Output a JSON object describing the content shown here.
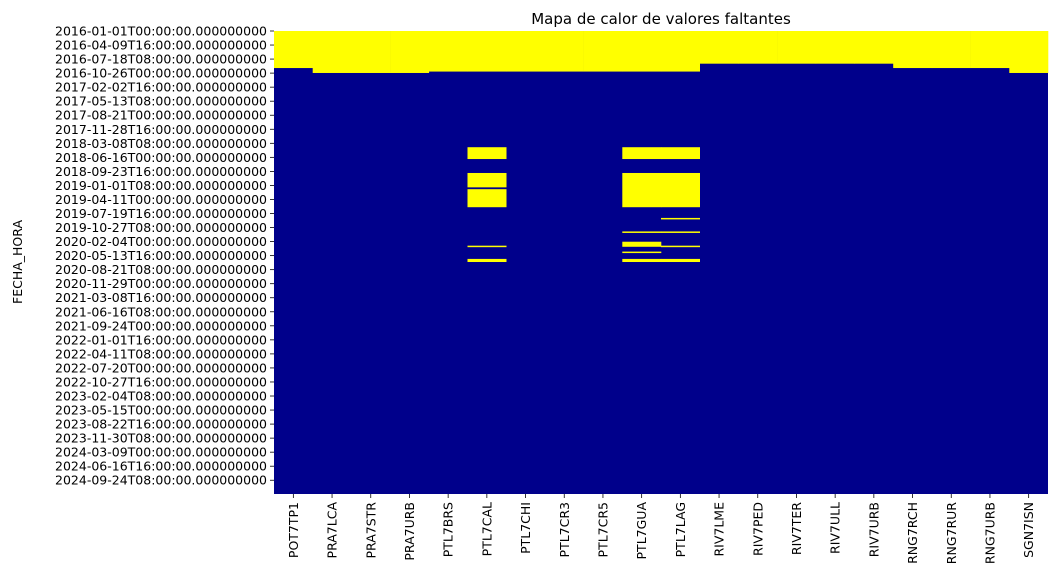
{
  "chart_data": {
    "type": "heatmap",
    "title": "Mapa de calor de valores faltantes",
    "xlabel": "",
    "ylabel": "FECHA_HORA",
    "legend": "none",
    "grid": false,
    "colors": {
      "missing": "#ffff00",
      "present": "#00008b"
    },
    "x_categories": [
      "POT7TP1",
      "PRA7LCA",
      "PRA7STR",
      "PRA7URB",
      "PTL7BRS",
      "PTL7CAL",
      "PTL7CHI",
      "PTL7CR3",
      "PTL7CR5",
      "PTL7GUA",
      "PTL7LAG",
      "RIV7LME",
      "RIV7PED",
      "RIV7TER",
      "RIV7ULL",
      "RIV7URB",
      "RNG7RCH",
      "RNG7RUR",
      "RNG7URB",
      "SGN7ISN"
    ],
    "y_tick_labels": [
      "2016-01-01T00:00:00.000000000",
      "2016-04-09T16:00:00.000000000",
      "2016-07-18T08:00:00.000000000",
      "2016-10-26T00:00:00.000000000",
      "2017-02-02T16:00:00.000000000",
      "2017-05-13T08:00:00.000000000",
      "2017-08-21T00:00:00.000000000",
      "2017-11-28T16:00:00.000000000",
      "2018-03-08T08:00:00.000000000",
      "2018-06-16T00:00:00.000000000",
      "2018-09-23T16:00:00.000000000",
      "2019-01-01T08:00:00.000000000",
      "2019-04-11T00:00:00.000000000",
      "2019-07-19T16:00:00.000000000",
      "2019-10-27T08:00:00.000000000",
      "2020-02-04T00:00:00.000000000",
      "2020-05-13T16:00:00.000000000",
      "2020-08-21T08:00:00.000000000",
      "2020-11-29T00:00:00.000000000",
      "2021-03-08T16:00:00.000000000",
      "2021-06-16T08:00:00.000000000",
      "2021-09-24T00:00:00.000000000",
      "2022-01-01T16:00:00.000000000",
      "2022-04-11T08:00:00.000000000",
      "2022-07-20T00:00:00.000000000",
      "2022-10-27T16:00:00.000000000",
      "2023-02-04T08:00:00.000000000",
      "2023-05-15T00:00:00.000000000",
      "2023-08-22T16:00:00.000000000",
      "2023-11-30T08:00:00.000000000",
      "2024-03-09T00:00:00.000000000",
      "2024-06-16T16:00:00.000000000",
      "2024-09-24T08:00:00.000000000"
    ],
    "y_range": [
      "2016-01-01",
      "2024-12-31"
    ],
    "missing_ranges": [
      {
        "column": "POT7TP1",
        "from": "2016-01-01",
        "to": "2016-09-20"
      },
      {
        "column": "PRA7LCA",
        "from": "2016-01-01",
        "to": "2016-10-25"
      },
      {
        "column": "PRA7STR",
        "from": "2016-01-01",
        "to": "2016-10-25"
      },
      {
        "column": "PRA7URB",
        "from": "2016-01-01",
        "to": "2016-10-25"
      },
      {
        "column": "PTL7BRS",
        "from": "2016-01-01",
        "to": "2016-10-15"
      },
      {
        "column": "PTL7CAL",
        "from": "2016-01-01",
        "to": "2016-10-15"
      },
      {
        "column": "PTL7CAL",
        "from": "2018-04-05",
        "to": "2018-06-28"
      },
      {
        "column": "PTL7CAL",
        "from": "2018-10-05",
        "to": "2019-01-15"
      },
      {
        "column": "PTL7CAL",
        "from": "2019-01-28",
        "to": "2019-06-05"
      },
      {
        "column": "PTL7CAL",
        "from": "2020-03-04",
        "to": "2020-03-14"
      },
      {
        "column": "PTL7CAL",
        "from": "2020-06-06",
        "to": "2020-06-28"
      },
      {
        "column": "PTL7CHI",
        "from": "2016-01-01",
        "to": "2016-10-15"
      },
      {
        "column": "PTL7CR3",
        "from": "2016-01-01",
        "to": "2016-10-15"
      },
      {
        "column": "PTL7CR5",
        "from": "2016-01-01",
        "to": "2016-10-15"
      },
      {
        "column": "PTL7GUA",
        "from": "2016-01-01",
        "to": "2016-10-15"
      },
      {
        "column": "PTL7GUA",
        "from": "2018-04-05",
        "to": "2018-06-28"
      },
      {
        "column": "PTL7GUA",
        "from": "2018-10-05",
        "to": "2019-06-05"
      },
      {
        "column": "PTL7GUA",
        "from": "2019-11-24",
        "to": "2019-12-02"
      },
      {
        "column": "PTL7GUA",
        "from": "2020-02-05",
        "to": "2020-03-12"
      },
      {
        "column": "PTL7GUA",
        "from": "2020-04-15",
        "to": "2020-04-25"
      },
      {
        "column": "PTL7GUA",
        "from": "2020-06-06",
        "to": "2020-06-28"
      },
      {
        "column": "PTL7LAG",
        "from": "2016-01-01",
        "to": "2016-10-15"
      },
      {
        "column": "PTL7LAG",
        "from": "2018-04-05",
        "to": "2018-06-28"
      },
      {
        "column": "PTL7LAG",
        "from": "2018-10-05",
        "to": "2019-06-05"
      },
      {
        "column": "PTL7LAG",
        "from": "2019-08-20",
        "to": "2019-08-27"
      },
      {
        "column": "PTL7LAG",
        "from": "2019-11-24",
        "to": "2019-12-02"
      },
      {
        "column": "PTL7LAG",
        "from": "2020-03-04",
        "to": "2020-03-14"
      },
      {
        "column": "PTL7LAG",
        "from": "2020-06-06",
        "to": "2020-06-28"
      },
      {
        "column": "RIV7LME",
        "from": "2016-01-01",
        "to": "2016-08-20"
      },
      {
        "column": "RIV7PED",
        "from": "2016-01-01",
        "to": "2016-08-20"
      },
      {
        "column": "RIV7TER",
        "from": "2016-01-01",
        "to": "2016-08-20"
      },
      {
        "column": "RIV7ULL",
        "from": "2016-01-01",
        "to": "2016-08-20"
      },
      {
        "column": "RIV7URB",
        "from": "2016-01-01",
        "to": "2016-08-20"
      },
      {
        "column": "RNG7RCH",
        "from": "2016-01-01",
        "to": "2016-09-20"
      },
      {
        "column": "RNG7RUR",
        "from": "2016-01-01",
        "to": "2016-09-20"
      },
      {
        "column": "RNG7URB",
        "from": "2016-01-01",
        "to": "2016-09-20"
      },
      {
        "column": "SGN7ISN",
        "from": "2016-01-01",
        "to": "2016-10-25"
      }
    ]
  }
}
